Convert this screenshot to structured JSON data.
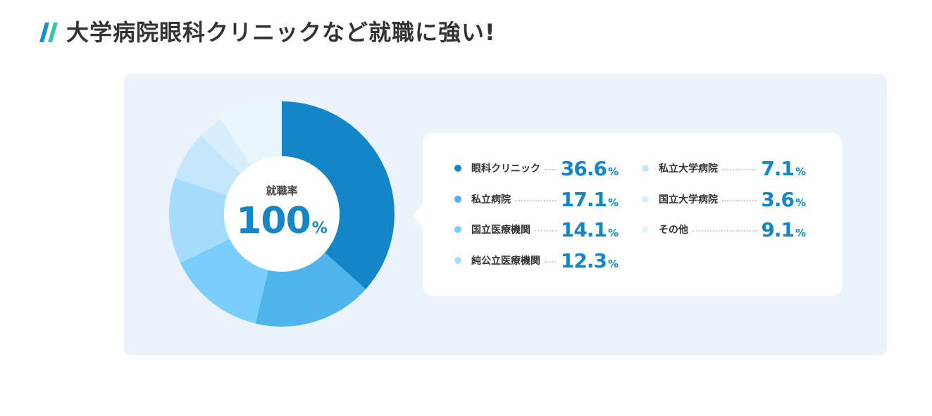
{
  "heading": {
    "title": "大学病院眼科クリニックなど就職に強い!",
    "mark_colors": [
      "#1a8fd0",
      "#3cc6a8"
    ]
  },
  "donut_center": {
    "label": "就職率",
    "value": "100",
    "unit": "%"
  },
  "colors": {
    "panel_bg": "#ebf2f9",
    "accent": "#1486c8"
  },
  "chart_data": {
    "type": "pie",
    "categories": [
      "眼科クリニック",
      "私立病院",
      "国立医療機関",
      "純公立医療機関",
      "私立大学病院",
      "国立大学病院",
      "その他"
    ],
    "values": [
      36.6,
      17.1,
      14.1,
      12.3,
      7.1,
      3.6,
      9.1
    ],
    "value_labels": [
      "36.6",
      "17.1",
      "14.1",
      "12.3",
      "7.1",
      "3.6",
      "9.1"
    ],
    "unit": "%",
    "colors": [
      "#1486c8",
      "#4fb4ec",
      "#79cdfc",
      "#a6dcfb",
      "#c5e7fb",
      "#d7effd",
      "#e8f5fd"
    ],
    "legend_placement": "right"
  }
}
